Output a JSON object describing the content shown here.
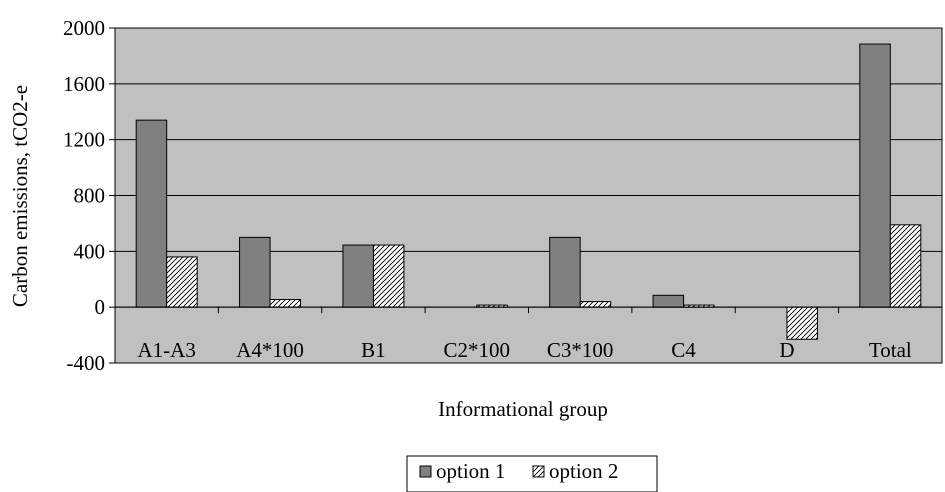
{
  "chart_data": {
    "type": "bar",
    "title": "",
    "xlabel": "Informational group",
    "ylabel": "Carbon emissions, tCO2-e",
    "categories": [
      "A1-A3",
      "A4*100",
      "B1",
      "C2*100",
      "C3*100",
      "C4",
      "D",
      "Total"
    ],
    "series": [
      {
        "name": "option 1",
        "values": [
          1340,
          500,
          445,
          0,
          500,
          85,
          0,
          1885
        ],
        "color": "#808080",
        "pattern": "solid"
      },
      {
        "name": "option 2",
        "values": [
          360,
          55,
          445,
          15,
          40,
          15,
          -230,
          590
        ],
        "color": "#ffffff",
        "pattern": "diagonal-hatch"
      }
    ],
    "ylim": [
      -400,
      2000
    ],
    "yticks": [
      -400,
      0,
      400,
      800,
      1200,
      1600,
      2000
    ],
    "ytick_labels": [
      "-400",
      "0",
      "400",
      "800",
      "1200",
      "1600",
      "2000"
    ],
    "grid": true,
    "plot_background": "#c0c0c0",
    "legend_position": "bottom"
  }
}
